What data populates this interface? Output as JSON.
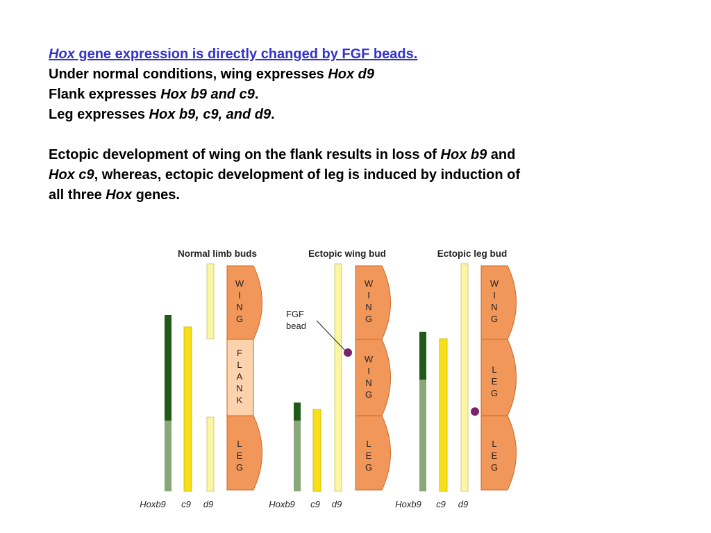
{
  "slide": {
    "heading_italic": "Hox",
    "heading_rest": " gene expression is directly changed by FGF beads.",
    "line2_plain": "Under normal conditions, wing expresses ",
    "line2_italic": "Hox d9",
    "line3_plain": "Flank expresses ",
    "line3_italic": "Hox b9 and c9",
    "line3_end": ".",
    "line4_plain": "Leg expresses ",
    "line4_italic": "Hox b9, c9, and d9",
    "line4_end": ".",
    "para_a": "Ectopic development of wing on the flank results in loss of ",
    "para_b_italic": "Hox b9",
    "para_c": " and",
    "para_d_italic": "Hox c9",
    "para_e": ", whereas, ectopic development of leg is induced by induction of",
    "para_f": "all three ",
    "para_g_italic": "Hox",
    "para_h": " genes."
  },
  "figure": {
    "panels": [
      {
        "title": "Normal limb buds",
        "segments": [
          {
            "letters": [
              "W",
              "I",
              "N",
              "G"
            ],
            "type": "bud",
            "color": "#f2975a"
          },
          {
            "letters": [
              "F",
              "L",
              "A",
              "N",
              "K"
            ],
            "type": "flank",
            "color": "#fcd3ad"
          },
          {
            "letters": [
              "L",
              "E",
              "G"
            ],
            "type": "bud",
            "color": "#f2975a"
          }
        ],
        "genes": [
          "Hoxb9",
          "c9",
          "d9"
        ]
      },
      {
        "title": "Ectopic wing bud",
        "segments": [
          {
            "letters": [
              "W",
              "I",
              "N",
              "G"
            ],
            "type": "bud",
            "color": "#f2975a"
          },
          {
            "letters": [
              "W",
              "I",
              "N",
              "G"
            ],
            "type": "bud",
            "color": "#f2975a"
          },
          {
            "letters": [
              "L",
              "E",
              "G"
            ],
            "type": "bud",
            "color": "#f2975a"
          }
        ],
        "genes": [
          "Hoxb9",
          "c9",
          "d9"
        ],
        "bead_label": [
          "FGF",
          "bead"
        ]
      },
      {
        "title": "Ectopic leg bud",
        "segments": [
          {
            "letters": [
              "W",
              "I",
              "N",
              "G"
            ],
            "type": "bud",
            "color": "#f2975a"
          },
          {
            "letters": [
              "L",
              "E",
              "G"
            ],
            "type": "bud",
            "color": "#f2975a"
          },
          {
            "letters": [
              "L",
              "E",
              "G"
            ],
            "type": "bud",
            "color": "#f2975a"
          }
        ],
        "genes": [
          "Hoxb9",
          "c9",
          "d9"
        ]
      }
    ],
    "colors": {
      "hoxb9_dark": "#1f5a17",
      "hoxb9_light": "#88a877",
      "c9": "#f7e018",
      "d9": "#fbf5a4",
      "bead": "#7a2466",
      "bud_outline": "#cc6622",
      "heading": "#3333cc"
    }
  }
}
